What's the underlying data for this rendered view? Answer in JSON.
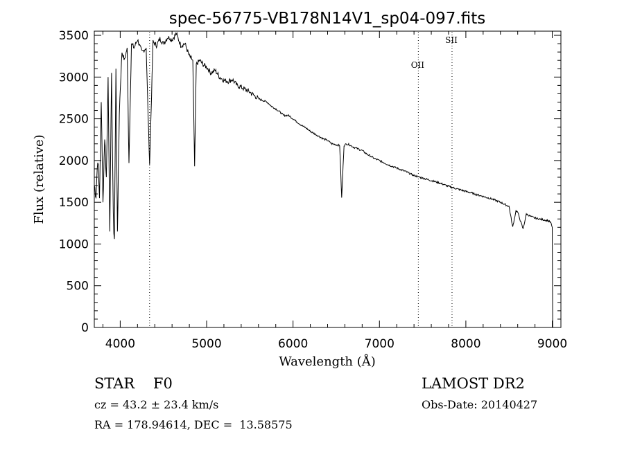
{
  "chart_data": {
    "type": "line",
    "title": "spec-56775-VB178N14V1_sp04-097.fits",
    "xlabel": "Wavelength (Å)",
    "ylabel": "Flux (relative)",
    "xlim": [
      3700,
      9100
    ],
    "ylim": [
      0,
      3550
    ],
    "xticks": [
      4000,
      5000,
      6000,
      7000,
      8000,
      9000
    ],
    "xtick_labels": [
      "4000",
      "5000",
      "6000",
      "7000",
      "8000",
      "9000"
    ],
    "yticks": [
      0,
      500,
      1000,
      1500,
      2000,
      2500,
      3000,
      3500
    ],
    "ytick_labels": [
      "0",
      "500",
      "1000",
      "1500",
      "2000",
      "2500",
      "3000",
      "3500"
    ],
    "grid": false,
    "series": [
      {
        "x": [
          3700,
          3720,
          3740,
          3760,
          3780,
          3800,
          3820,
          3840,
          3860,
          3880,
          3900,
          3920,
          3933,
          3950,
          3968,
          3990,
          4020,
          4050,
          4080,
          4101,
          4130,
          4160,
          4200,
          4250,
          4300,
          4340,
          4380,
          4420,
          4460,
          4500,
          4550,
          4600,
          4650,
          4700,
          4750,
          4800,
          4840,
          4861,
          4880,
          4920,
          4960,
          5000,
          5050,
          5100,
          5150,
          5200,
          5250,
          5300,
          5350,
          5400,
          5450,
          5500,
          5550,
          5600,
          5650,
          5700,
          5750,
          5800,
          5850,
          5893,
          5950,
          6000,
          6050,
          6100,
          6150,
          6200,
          6250,
          6300,
          6350,
          6400,
          6450,
          6500,
          6540,
          6563,
          6590,
          6620,
          6650,
          6700,
          6750,
          6800,
          6850,
          6900,
          6950,
          7000,
          7100,
          7200,
          7300,
          7400,
          7500,
          7600,
          7700,
          7800,
          7900,
          8000,
          8100,
          8200,
          8300,
          8400,
          8500,
          8542,
          8580,
          8600,
          8662,
          8700,
          8750,
          8800,
          8850,
          8900,
          8950,
          8980,
          9000,
          9005
        ],
        "y": [
          1700,
          1600,
          2050,
          1550,
          2700,
          1500,
          2300,
          1800,
          3000,
          1150,
          3050,
          1300,
          1060,
          3100,
          1150,
          2600,
          3300,
          3200,
          3350,
          1970,
          3400,
          3350,
          3450,
          3300,
          3350,
          1950,
          3420,
          3380,
          3460,
          3400,
          3480,
          3450,
          3520,
          3380,
          3400,
          3250,
          3200,
          1930,
          3150,
          3200,
          3150,
          3120,
          3050,
          3080,
          3000,
          2960,
          2950,
          2970,
          2900,
          2880,
          2850,
          2820,
          2780,
          2740,
          2720,
          2700,
          2650,
          2620,
          2580,
          2540,
          2540,
          2500,
          2460,
          2420,
          2390,
          2350,
          2320,
          2290,
          2260,
          2240,
          2200,
          2190,
          2180,
          1550,
          2180,
          2200,
          2190,
          2160,
          2140,
          2120,
          2080,
          2050,
          2020,
          2000,
          1950,
          1910,
          1870,
          1820,
          1790,
          1760,
          1730,
          1690,
          1660,
          1630,
          1600,
          1570,
          1540,
          1500,
          1450,
          1200,
          1400,
          1380,
          1180,
          1360,
          1330,
          1310,
          1300,
          1290,
          1280,
          1260,
          1200,
          0
        ]
      }
    ],
    "lines": [
      {
        "x": 4340,
        "label": ""
      },
      {
        "x": 7450,
        "label": "OII"
      },
      {
        "x": 7840,
        "label": "SII"
      }
    ]
  },
  "info": {
    "classification": "STAR    F0",
    "survey": "LAMOST DR2",
    "cz": "cz = 43.2 ± 23.4 km/s",
    "obs_date": "Obs-Date: 20140427",
    "coords": "RA = 178.94614, DEC =  13.58575"
  }
}
